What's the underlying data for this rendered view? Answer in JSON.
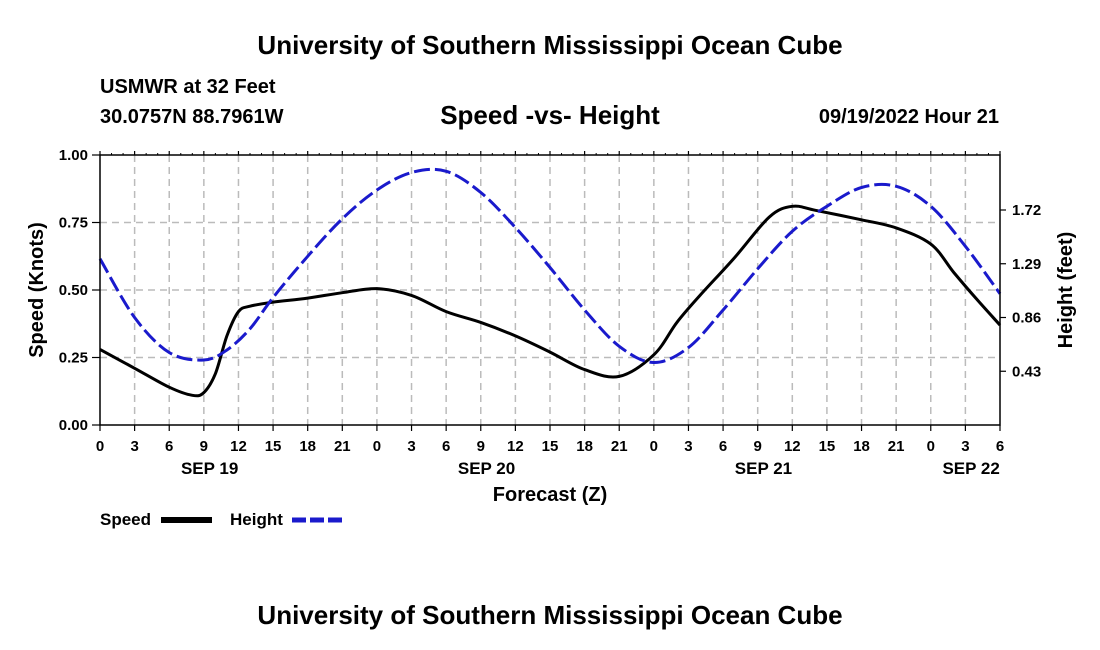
{
  "header": {
    "title": "University of Southern Mississippi Ocean Cube",
    "station": "USMWR at 32 Feet",
    "coords": "30.0757N  88.7961W",
    "subtitle": "Speed -vs- Height",
    "datetime": "09/19/2022 Hour 21"
  },
  "footer": {
    "title": "University of Southern Mississippi Ocean Cube"
  },
  "colors": {
    "speed": "#000000",
    "height": "#1a1acc",
    "grid": "#bbbbbb"
  },
  "chart_data": {
    "type": "line",
    "title": "Speed -vs- Height",
    "xlabel": "Forecast (Z)",
    "ylabel": "Speed (Knots)",
    "y2label": "Height (feet)",
    "x_unit": "hours from SEP 19 00Z",
    "xlim": [
      0,
      78
    ],
    "x_ticks": [
      0,
      3,
      6,
      9,
      12,
      15,
      18,
      21,
      24,
      27,
      30,
      33,
      36,
      39,
      42,
      45,
      48,
      51,
      54,
      57,
      60,
      63,
      66,
      69,
      72,
      75,
      78
    ],
    "x_tick_labels": [
      "0",
      "3",
      "6",
      "9",
      "12",
      "15",
      "18",
      "21",
      "0",
      "3",
      "6",
      "9",
      "12",
      "15",
      "18",
      "21",
      "0",
      "3",
      "6",
      "9",
      "12",
      "15",
      "18",
      "21",
      "0",
      "3",
      "6"
    ],
    "date_labels": [
      {
        "label": "SEP 19",
        "x": 9.5
      },
      {
        "label": "SEP 20",
        "x": 33.5
      },
      {
        "label": "SEP 21",
        "x": 57.5
      },
      {
        "label": "SEP 22",
        "x": 75.5
      }
    ],
    "ylim": [
      0,
      1.0
    ],
    "y_ticks": [
      0.0,
      0.25,
      0.5,
      0.75,
      1.0
    ],
    "y_tick_labels": [
      "0.00",
      "0.25",
      "0.50",
      "0.75",
      "1.00"
    ],
    "y2lim": [
      0.0,
      2.16
    ],
    "y2_ticks": [
      0.43,
      0.86,
      1.29,
      1.72
    ],
    "y2_tick_labels": [
      "0.43",
      "0.86",
      "1.29",
      "1.72"
    ],
    "legend": [
      {
        "label": "Speed",
        "style": "solid"
      },
      {
        "label": "Height",
        "style": "dashed"
      }
    ],
    "series": [
      {
        "name": "Speed",
        "axis": "left",
        "style": "solid",
        "x": [
          0,
          3,
          6,
          8,
          9,
          10,
          11,
          12,
          13,
          15,
          18,
          21,
          24,
          27,
          30,
          33,
          36,
          39,
          42,
          45,
          48,
          50,
          52,
          55,
          58,
          60,
          62,
          66,
          69,
          72,
          74,
          76,
          78
        ],
        "y": [
          0.28,
          0.21,
          0.14,
          0.11,
          0.12,
          0.19,
          0.33,
          0.42,
          0.44,
          0.455,
          0.47,
          0.49,
          0.505,
          0.48,
          0.42,
          0.38,
          0.33,
          0.27,
          0.205,
          0.18,
          0.26,
          0.38,
          0.48,
          0.62,
          0.77,
          0.81,
          0.795,
          0.76,
          0.73,
          0.67,
          0.565,
          0.465,
          0.37
        ]
      },
      {
        "name": "Height",
        "axis": "right",
        "style": "dashed",
        "x": [
          0,
          3,
          6,
          9,
          11,
          13,
          15,
          18,
          21,
          24,
          27,
          30,
          33,
          36,
          39,
          42,
          45,
          48,
          51,
          54,
          57,
          60,
          63,
          66,
          69,
          72,
          75,
          78
        ],
        "y": [
          1.33,
          0.86,
          0.58,
          0.52,
          0.6,
          0.77,
          1.02,
          1.35,
          1.65,
          1.88,
          2.02,
          2.03,
          1.86,
          1.58,
          1.26,
          0.92,
          0.63,
          0.5,
          0.62,
          0.92,
          1.25,
          1.55,
          1.75,
          1.9,
          1.91,
          1.75,
          1.43,
          1.05
        ]
      }
    ]
  }
}
